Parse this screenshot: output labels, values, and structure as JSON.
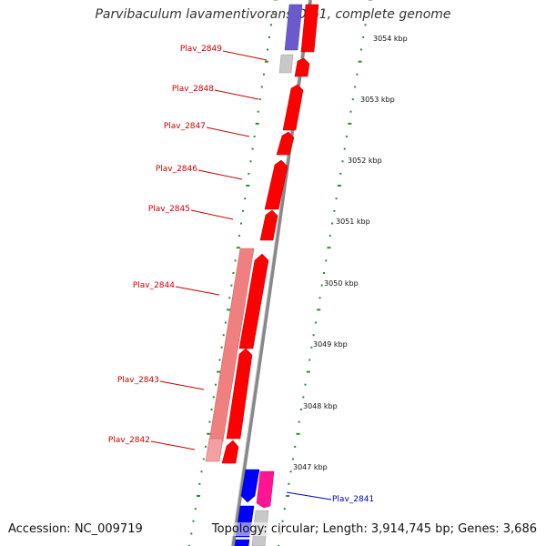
{
  "title": "Parvibaculum lavamentivorans DS-1, complete genome",
  "footer": {
    "accession": "Accession: NC_009719",
    "summary": "Topology: circular; Length: 3,914,745 bp; Genes: 3,686"
  },
  "colors": {
    "backbone": "#808080",
    "cds_red": "#ff0000",
    "cds_pink_light": "#f08080",
    "cds_magenta": "#ff1493",
    "cds_blue": "#0000ff",
    "cds_purple": "#6a5acd",
    "cds_gray": "#c0c0c0",
    "tick_green": "#2e8b2e",
    "label_red": "#cc0000",
    "label_blue": "#0000cc"
  },
  "ruler_labels": [
    "3054 kbp",
    "3053 kbp",
    "3052 kbp",
    "3051 kbp",
    "3050 kbp",
    "3049 kbp",
    "3048 kbp",
    "3047 kbp"
  ],
  "gene_labels": [
    {
      "text": "Plav_2849",
      "color": "red"
    },
    {
      "text": "Plav_2848",
      "color": "red"
    },
    {
      "text": "Plav_2847",
      "color": "red"
    },
    {
      "text": "Plav_2846",
      "color": "red"
    },
    {
      "text": "Plav_2845",
      "color": "red"
    },
    {
      "text": "Plav_2844",
      "color": "red"
    },
    {
      "text": "Plav_2843",
      "color": "red"
    },
    {
      "text": "Plav_2842",
      "color": "red"
    },
    {
      "text": "Plav_2841",
      "color": "blue"
    }
  ]
}
